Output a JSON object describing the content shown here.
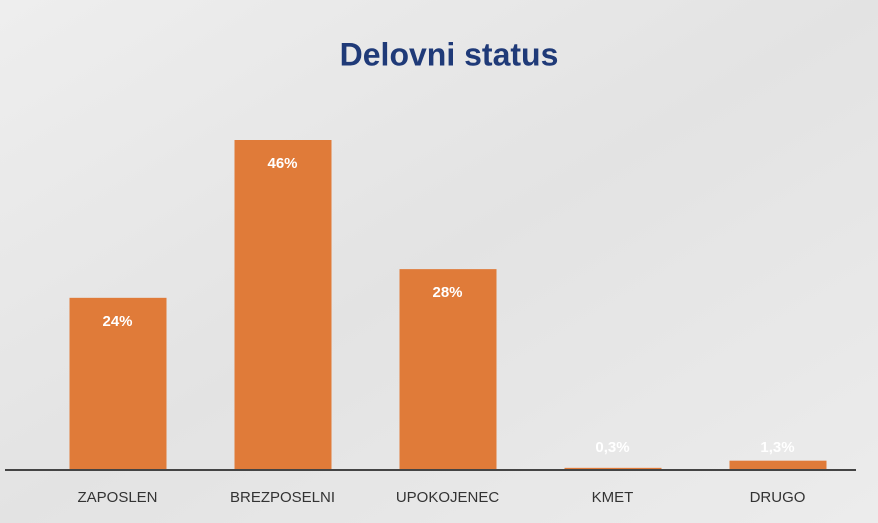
{
  "chart_data": {
    "type": "bar",
    "title": "Delovni status",
    "categories": [
      "ZAPOSLEN",
      "BREZPOSELNI",
      "UPOKOJENEC",
      "KMET",
      "DRUGO"
    ],
    "values": [
      24,
      46,
      28,
      0.3,
      1.3
    ],
    "value_labels": [
      "24%",
      "46%",
      "28%",
      "0,3%",
      "1,3%"
    ],
    "color": "#e07b39"
  }
}
